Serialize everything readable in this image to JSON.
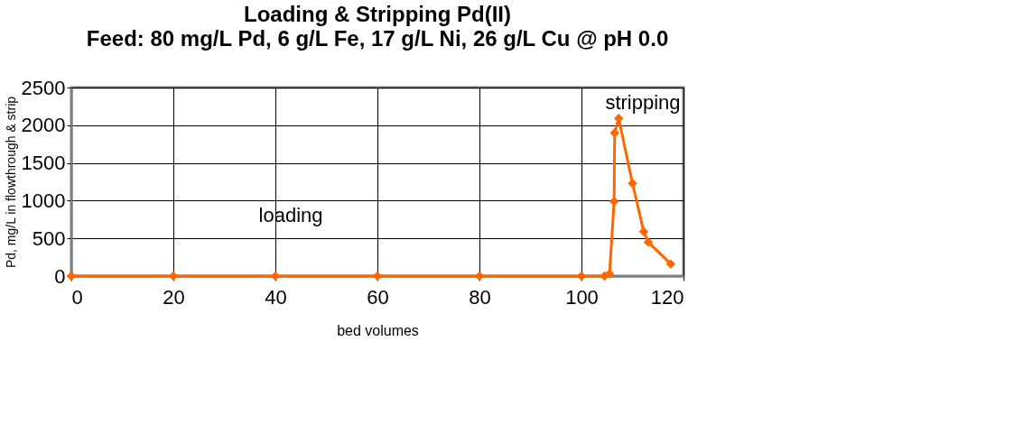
{
  "chart_data": {
    "type": "line",
    "title": "Loading & Stripping Pd(II)",
    "subtitle": "Feed: 80 mg/L Pd, 6 g/L Fe, 17 g/L Ni, 26 g/L Cu @ pH 0.0",
    "xlabel": "bed volumes",
    "ylabel": "Pd, mg/L in flowthrough & strip",
    "x": [
      0,
      20,
      40,
      60,
      80,
      100,
      104.5,
      105.5,
      106.4,
      106.5,
      107.3,
      110,
      112.2,
      113.1,
      117.5
    ],
    "series": [
      {
        "color": "#ff6600",
        "values": [
          0,
          0,
          0,
          0,
          0,
          0,
          0,
          30,
          990,
          1900,
          2090,
          1230,
          590,
          450,
          160
        ]
      }
    ],
    "xlim": [
      0,
      120
    ],
    "xticks": [
      0,
      20,
      40,
      60,
      80,
      100,
      120
    ],
    "ylim": [
      0,
      2500
    ],
    "yticks": [
      0,
      500,
      1000,
      1500,
      2000,
      2500
    ],
    "grid": true,
    "marker": "diamond",
    "line_style": "solid",
    "annotations": [
      "loading",
      "stripping"
    ]
  }
}
